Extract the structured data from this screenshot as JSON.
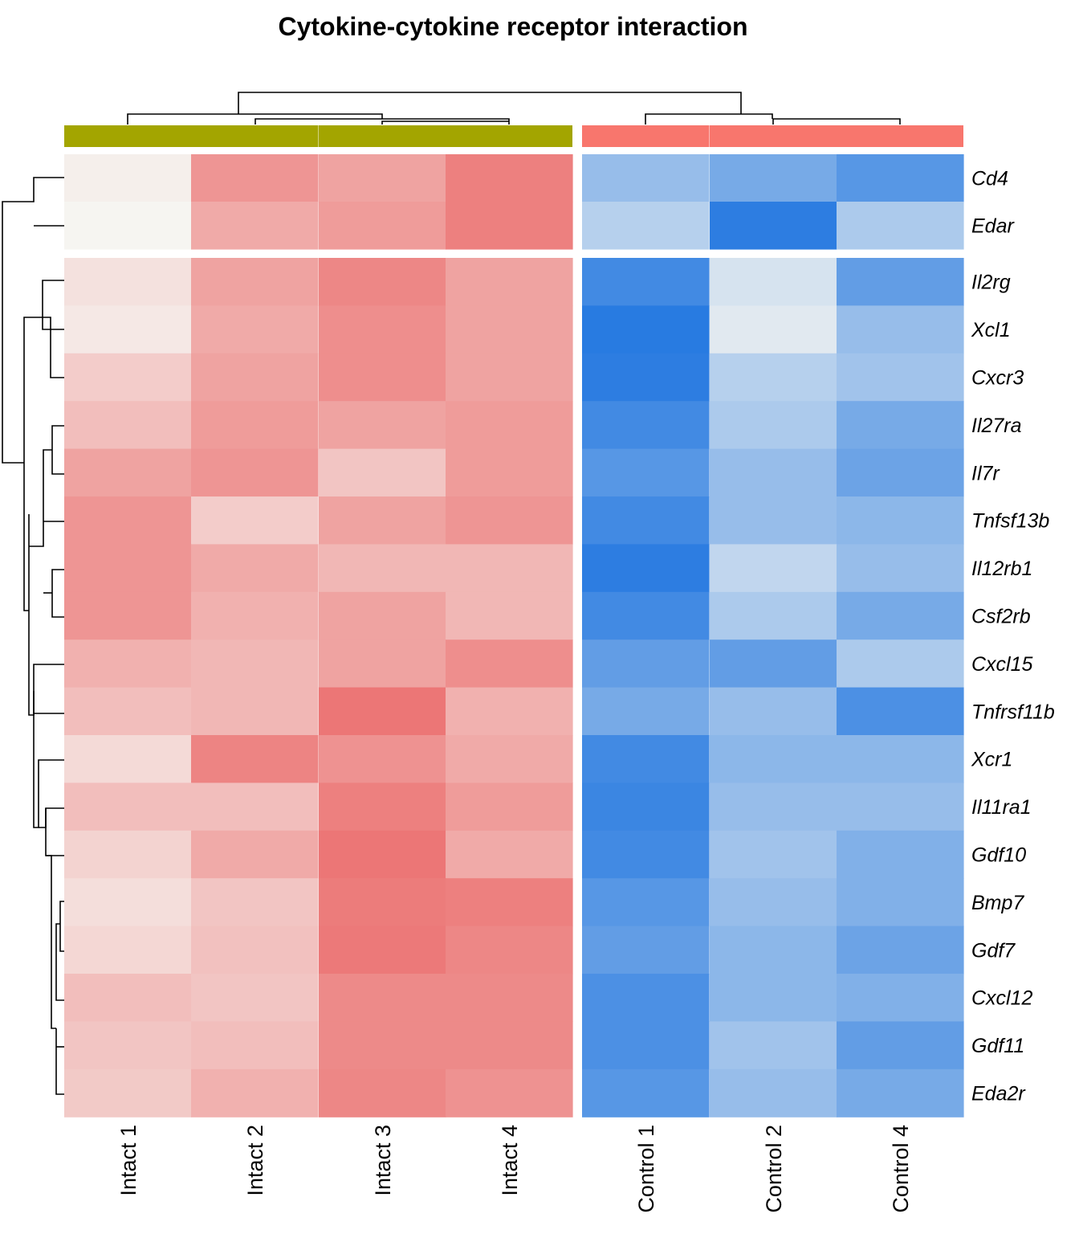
{
  "chart_data": {
    "type": "heatmap",
    "title": "Cytokine-cytokine receptor interaction",
    "columns": [
      "Intact 1",
      "Intact 2",
      "Intact 3",
      "Intact 4",
      "Control 1",
      "Control 2",
      "Control 4"
    ],
    "column_groups": [
      {
        "name": "Intact",
        "color": "#A3A500",
        "members": [
          "Intact 1",
          "Intact 2",
          "Intact 3",
          "Intact 4"
        ]
      },
      {
        "name": "Control",
        "color": "#F8766D",
        "members": [
          "Control 1",
          "Control 2",
          "Control 4"
        ]
      }
    ],
    "rows": [
      "Cd4",
      "Edar",
      "Il2rg",
      "Xcl1",
      "Cxcr3",
      "Il27ra",
      "Il7r",
      "Tnfsf13b",
      "Il12rb1",
      "Csf2rb",
      "Cxcl15",
      "Tnfrsf11b",
      "Xcr1",
      "Il11ra1",
      "Gdf10",
      "Bmp7",
      "Gdf7",
      "Cxcl12",
      "Gdf11",
      "Eda2r"
    ],
    "row_split": [
      2,
      18
    ],
    "color_scale": {
      "low": "#2277E0",
      "mid": "#F6F6F2",
      "high": "#EB6B6B",
      "range": [
        -1,
        1
      ]
    },
    "values": [
      [
        0.05,
        0.7,
        0.6,
        0.85,
        -0.45,
        -0.6,
        -0.75
      ],
      [
        0.01,
        0.55,
        0.65,
        0.85,
        -0.3,
        -0.95,
        -0.35
      ],
      [
        0.15,
        0.6,
        0.8,
        0.6,
        -0.85,
        -0.15,
        -0.7
      ],
      [
        0.1,
        0.55,
        0.75,
        0.6,
        -0.97,
        -0.1,
        -0.45
      ],
      [
        0.3,
        0.6,
        0.75,
        0.6,
        -0.95,
        -0.3,
        -0.4
      ],
      [
        0.4,
        0.65,
        0.6,
        0.65,
        -0.85,
        -0.35,
        -0.6
      ],
      [
        0.6,
        0.7,
        0.35,
        0.65,
        -0.75,
        -0.45,
        -0.65
      ],
      [
        0.7,
        0.3,
        0.6,
        0.7,
        -0.85,
        -0.45,
        -0.5
      ],
      [
        0.7,
        0.55,
        0.45,
        0.45,
        -0.95,
        -0.25,
        -0.45
      ],
      [
        0.7,
        0.5,
        0.6,
        0.45,
        -0.85,
        -0.35,
        -0.6
      ],
      [
        0.5,
        0.45,
        0.6,
        0.75,
        -0.7,
        -0.7,
        -0.35
      ],
      [
        0.4,
        0.45,
        0.92,
        0.5,
        -0.6,
        -0.45,
        -0.8
      ],
      [
        0.2,
        0.82,
        0.72,
        0.55,
        -0.85,
        -0.5,
        -0.5
      ],
      [
        0.4,
        0.4,
        0.85,
        0.65,
        -0.88,
        -0.45,
        -0.45
      ],
      [
        0.25,
        0.55,
        0.92,
        0.55,
        -0.85,
        -0.4,
        -0.55
      ],
      [
        0.17,
        0.35,
        0.88,
        0.85,
        -0.75,
        -0.45,
        -0.55
      ],
      [
        0.22,
        0.38,
        0.9,
        0.8,
        -0.7,
        -0.5,
        -0.65
      ],
      [
        0.4,
        0.35,
        0.78,
        0.78,
        -0.8,
        -0.5,
        -0.55
      ],
      [
        0.35,
        0.4,
        0.78,
        0.78,
        -0.8,
        -0.4,
        -0.7
      ],
      [
        0.32,
        0.5,
        0.8,
        0.72,
        -0.75,
        -0.45,
        -0.6
      ]
    ]
  }
}
